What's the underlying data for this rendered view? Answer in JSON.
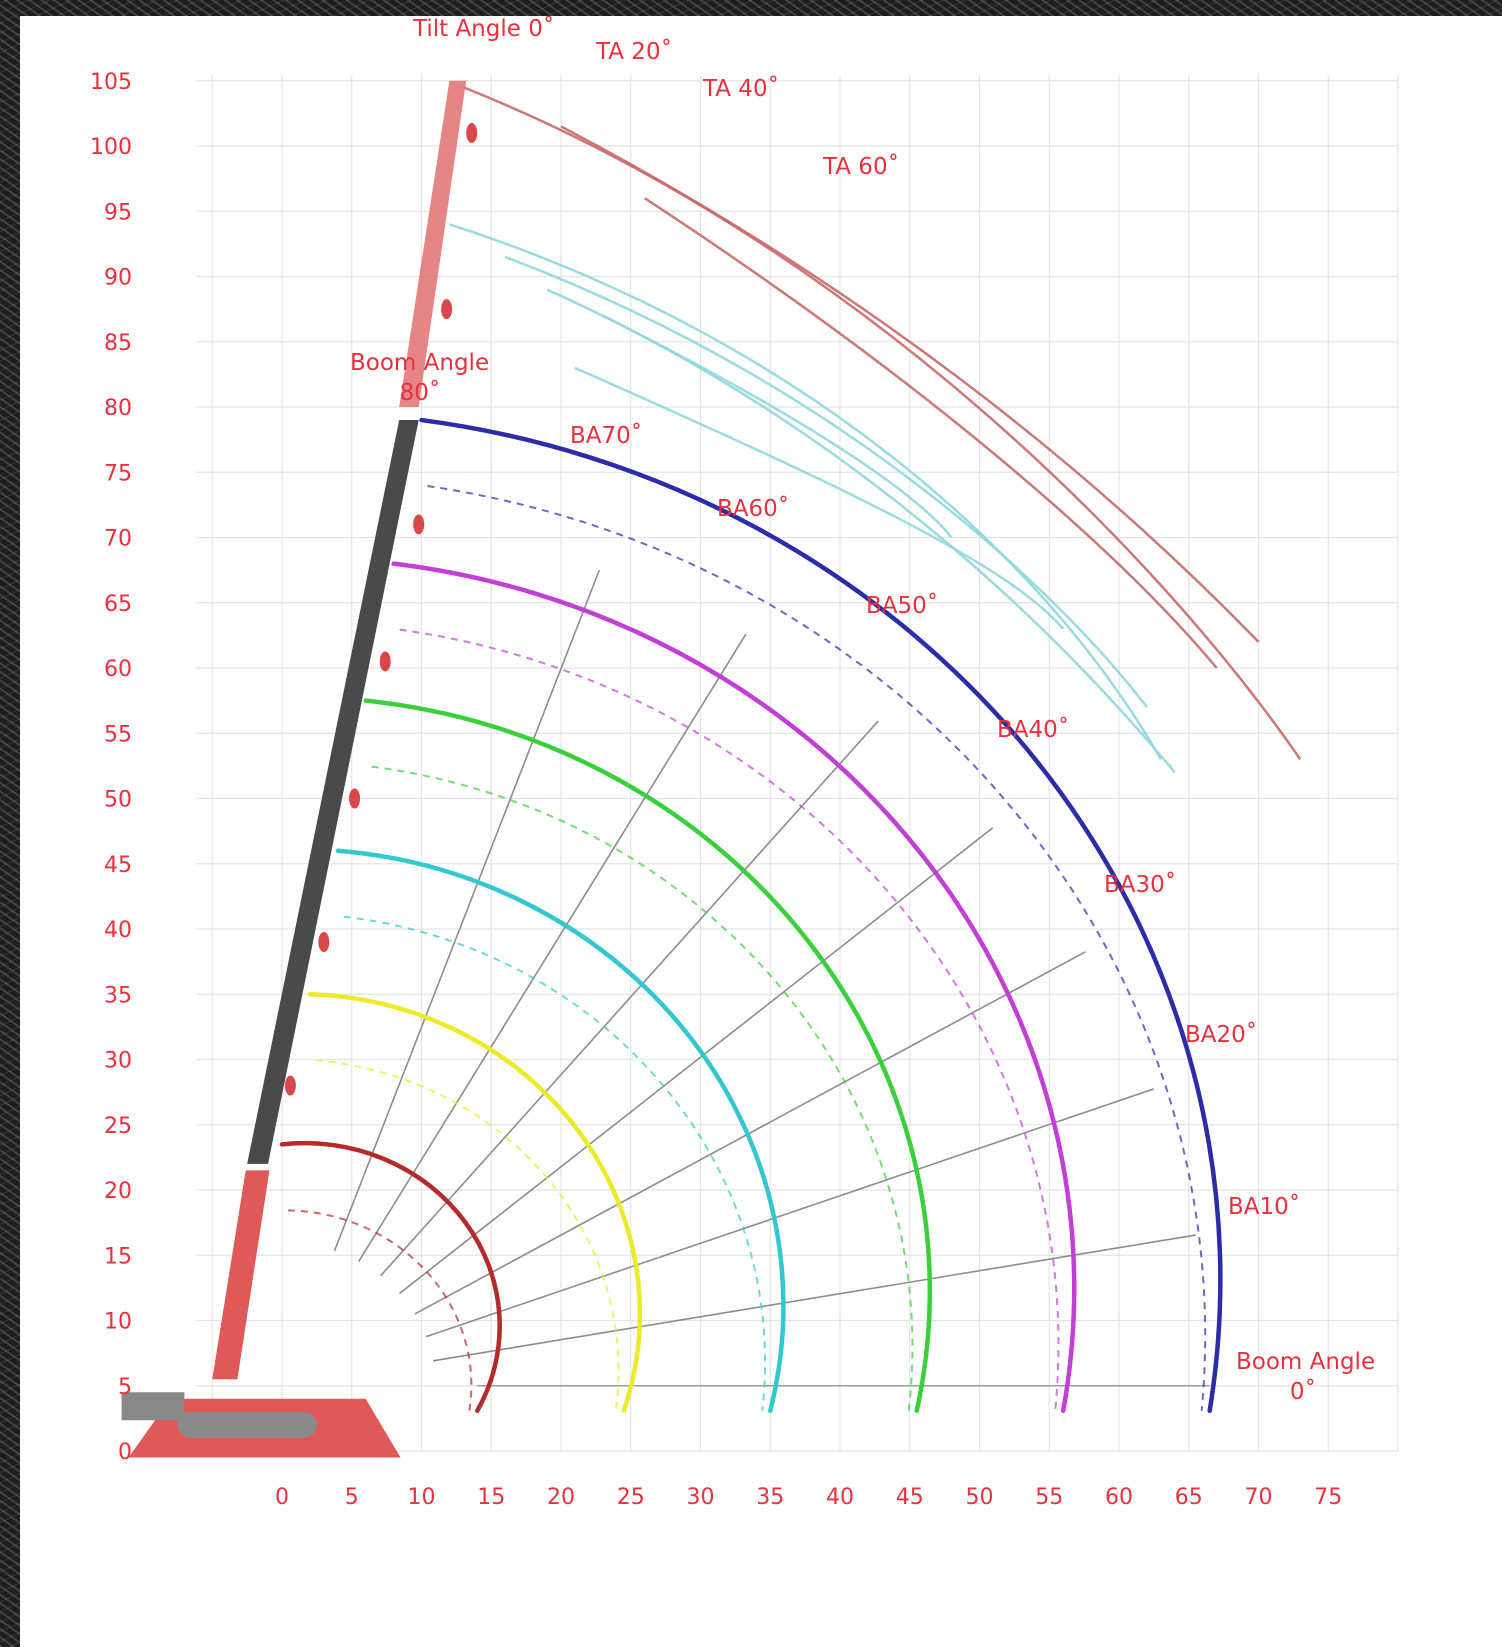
{
  "chart_data": {
    "type": "line",
    "title": "",
    "xlabel": "",
    "ylabel": "",
    "xlim": [
      0,
      75
    ],
    "ylim": [
      0,
      105
    ],
    "x_ticks": [
      "0",
      "5",
      "10",
      "15",
      "20",
      "25",
      "30",
      "35",
      "40",
      "45",
      "50",
      "55",
      "60",
      "65",
      "70",
      "75"
    ],
    "y_ticks": [
      "105",
      "100",
      "95",
      "90",
      "85",
      "80",
      "75",
      "70",
      "65",
      "60",
      "55",
      "50",
      "45",
      "40",
      "35",
      "30",
      "25",
      "20",
      "15",
      "10",
      "5",
      "0"
    ],
    "grid": true,
    "boom_angle_labels": {
      "top": "Boom Angle 80˚",
      "bottom": "Boom Angle 0˚",
      "rays": [
        {
          "label": "BA70˚",
          "angle": 70
        },
        {
          "label": "BA60˚",
          "angle": 60
        },
        {
          "label": "BA50˚",
          "angle": 50
        },
        {
          "label": "BA40˚",
          "angle": 40
        },
        {
          "label": "BA30˚",
          "angle": 30
        },
        {
          "label": "BA20˚",
          "angle": 20
        },
        {
          "label": "BA10˚",
          "angle": 10
        }
      ]
    },
    "tilt_angle_labels": [
      "Tilt Angle 0˚",
      "TA 20˚",
      "TA 40˚",
      "TA 60˚"
    ],
    "pivot": [
      0,
      5
    ],
    "boom_arcs": [
      {
        "color": "#b52a2a",
        "radius": 14.0,
        "top": [
          0,
          23.5
        ]
      },
      {
        "color": "#ecea2a",
        "radius": 24.5,
        "top": [
          2,
          35
        ]
      },
      {
        "color": "#33c7cf",
        "radius": 35.0,
        "top": [
          4,
          46
        ]
      },
      {
        "color": "#3ccf3c",
        "radius": 45.5,
        "top": [
          6,
          57.5
        ]
      },
      {
        "color": "#c23fd5",
        "radius": 56.0,
        "top": [
          8,
          68
        ]
      },
      {
        "color": "#2a2ca8",
        "radius": 66.5,
        "top": [
          10,
          79
        ]
      }
    ],
    "jib_curves": [
      {
        "color": "#c86868",
        "points": [
          [
            13,
            104.5
          ],
          [
            40,
            93
          ],
          [
            62,
            70
          ],
          [
            73,
            53
          ]
        ]
      },
      {
        "color": "#c86868",
        "points": [
          [
            20,
            101.5
          ],
          [
            44,
            88
          ],
          [
            60,
            73
          ],
          [
            70,
            62
          ]
        ]
      },
      {
        "color": "#c86868",
        "points": [
          [
            26,
            96
          ],
          [
            46,
            82
          ],
          [
            60,
            69
          ],
          [
            67,
            60
          ]
        ]
      },
      {
        "color": "#8fd7dd",
        "points": [
          [
            12,
            94
          ],
          [
            38,
            85
          ],
          [
            55,
            68
          ],
          [
            63,
            53
          ]
        ]
      },
      {
        "color": "#8fd7dd",
        "points": [
          [
            16,
            91.5
          ],
          [
            42,
            81
          ],
          [
            57,
            64
          ],
          [
            62,
            57
          ]
        ]
      },
      {
        "color": "#8fd7dd",
        "points": [
          [
            19,
            89
          ],
          [
            42,
            78
          ],
          [
            57,
            61
          ],
          [
            64,
            52
          ]
        ]
      },
      {
        "color": "#8fd7dd",
        "points": [
          [
            21,
            83
          ],
          [
            40,
            74
          ],
          [
            52,
            68
          ],
          [
            56,
            63
          ]
        ]
      },
      {
        "color": "#8fd7dd",
        "points": [
          [
            23,
            87
          ],
          [
            36,
            80
          ],
          [
            45,
            74
          ],
          [
            48,
            70
          ]
        ]
      }
    ]
  },
  "colors": {
    "accent": "#e8313d",
    "grid": "#e4e4e4",
    "ray": "#8c8c8c",
    "boom": "#4a4a4a",
    "base": "#e05858"
  }
}
